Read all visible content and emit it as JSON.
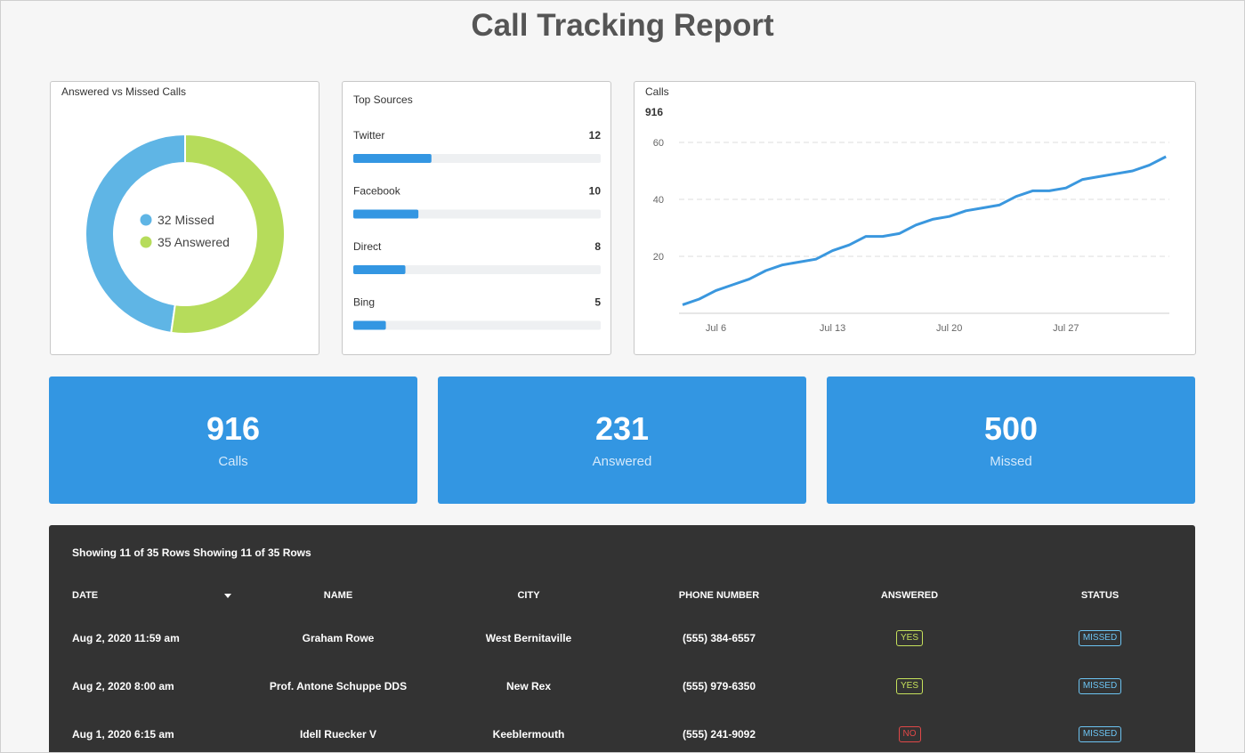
{
  "header": {
    "title": "Call Tracking Report"
  },
  "chart_data": [
    {
      "type": "pie",
      "title": "Answered vs Missed Calls",
      "values": [
        32,
        35
      ],
      "value_labels": [
        "32 Missed",
        "35 Answered"
      ],
      "colors": [
        "#5fb5e5",
        "#b6dc5b"
      ]
    },
    {
      "type": "bar",
      "title": "Top Sources",
      "categories": [
        "Twitter",
        "Facebook",
        "Direct",
        "Bing"
      ],
      "values": [
        12,
        10,
        8,
        5
      ],
      "color": "#3396e2",
      "xlim": [
        0,
        38
      ]
    },
    {
      "type": "line",
      "title": "Calls",
      "subtitle": "916",
      "x": [
        "Jul 4",
        "Jul 5",
        "Jul 6",
        "Jul 7",
        "Jul 8",
        "Jul 9",
        "Jul 10",
        "Jul 11",
        "Jul 12",
        "Jul 13",
        "Jul 14",
        "Jul 15",
        "Jul 16",
        "Jul 17",
        "Jul 18",
        "Jul 19",
        "Jul 20",
        "Jul 21",
        "Jul 22",
        "Jul 23",
        "Jul 24",
        "Jul 25",
        "Jul 26",
        "Jul 27",
        "Jul 28",
        "Jul 29",
        "Jul 30",
        "Jul 31",
        "Aug 1",
        "Aug 2"
      ],
      "values": [
        3,
        5,
        8,
        10,
        12,
        15,
        17,
        18,
        19,
        22,
        24,
        27,
        27,
        28,
        31,
        33,
        34,
        36,
        37,
        38,
        41,
        43,
        43,
        44,
        47,
        48,
        49,
        50,
        52,
        55
      ],
      "color": "#3a97de",
      "ylim": [
        0,
        65
      ],
      "yticks": [
        20,
        40,
        60
      ],
      "xticks": [
        "Jul 6",
        "Jul 13",
        "Jul 20",
        "Jul 27"
      ],
      "grid": true
    }
  ],
  "kpis": [
    {
      "value": "916",
      "label": "Calls"
    },
    {
      "value": "231",
      "label": "Answered"
    },
    {
      "value": "500",
      "label": "Missed"
    }
  ],
  "table": {
    "captions": [
      "Showing 11 of 35 Rows",
      "Showing 11 of 35 Rows"
    ],
    "columns": [
      "DATE",
      "NAME",
      "CITY",
      "PHONE NUMBER",
      "ANSWERED",
      "STATUS"
    ],
    "rows": [
      [
        "Aug 2, 2020 11:59 am",
        "Graham Rowe",
        "West Bernitaville",
        "(555) 384-6557",
        "YES",
        "MISSED"
      ],
      [
        "Aug 2, 2020 8:00 am",
        "Prof. Antone Schuppe DDS",
        "New Rex",
        "(555) 979-6350",
        "YES",
        "MISSED"
      ],
      [
        "Aug 1, 2020 6:15 am",
        "Idell Ruecker V",
        "Keeblermouth",
        "(555) 241-9092",
        "NO",
        "MISSED"
      ]
    ]
  }
}
